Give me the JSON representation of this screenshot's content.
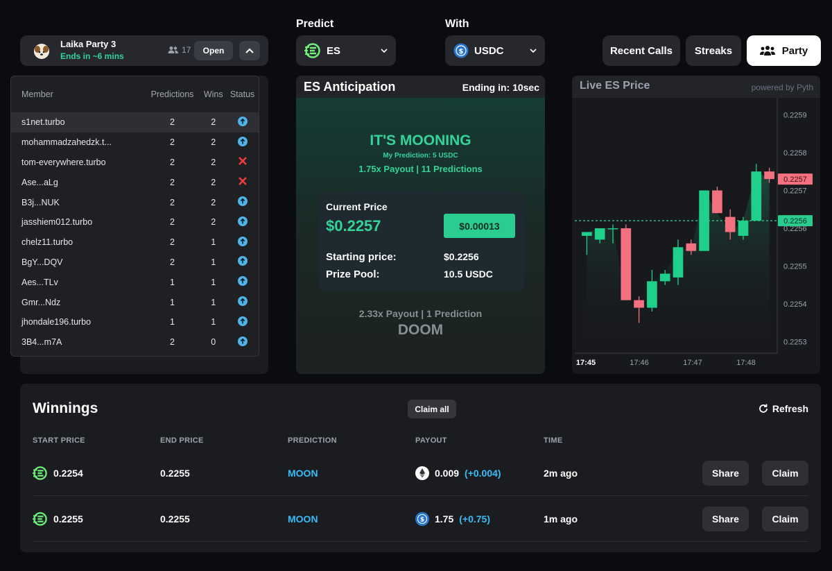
{
  "party": {
    "name": "Laika Party 3",
    "ends": "Ends in ~6 mins",
    "member_count": "17",
    "open_label": "Open"
  },
  "predict": {
    "label": "Predict",
    "value": "ES"
  },
  "with": {
    "label": "With",
    "value": "USDC"
  },
  "nav": {
    "recent_calls": "Recent Calls",
    "streaks": "Streaks",
    "party": "Party"
  },
  "members": {
    "headers": [
      "Member",
      "Predictions",
      "Wins",
      "Status"
    ],
    "rows": [
      {
        "name": "s1net.turbo",
        "predictions": "2",
        "wins": "2",
        "status": "up"
      },
      {
        "name": "mohammadzahedzk.t...",
        "predictions": "2",
        "wins": "2",
        "status": "up"
      },
      {
        "name": "tom-everywhere.turbo",
        "predictions": "2",
        "wins": "2",
        "status": "x"
      },
      {
        "name": "Ase...aLg",
        "predictions": "2",
        "wins": "2",
        "status": "x"
      },
      {
        "name": "B3j...NUK",
        "predictions": "2",
        "wins": "2",
        "status": "up"
      },
      {
        "name": "jasshiem012.turbo",
        "predictions": "2",
        "wins": "2",
        "status": "up"
      },
      {
        "name": "chelz11.turbo",
        "predictions": "2",
        "wins": "1",
        "status": "up"
      },
      {
        "name": "BgY...DQV",
        "predictions": "2",
        "wins": "1",
        "status": "up"
      },
      {
        "name": "Aes...TLv",
        "predictions": "1",
        "wins": "1",
        "status": "up"
      },
      {
        "name": "Gmr...Ndz",
        "predictions": "1",
        "wins": "1",
        "status": "up"
      },
      {
        "name": "jhondale196.turbo",
        "predictions": "1",
        "wins": "1",
        "status": "up"
      },
      {
        "name": "3B4...m7A",
        "predictions": "2",
        "wins": "0",
        "status": "up"
      }
    ]
  },
  "anticipation": {
    "title": "ES Anticipation",
    "ending": "Ending in: 10sec",
    "moon_title": "IT'S MOONING",
    "my_prediction": "My Prediction: 5 USDC",
    "moon_payout": "1.75x Payout | 11 Predictions",
    "current_price_label": "Current Price",
    "current_price": "$0.2257",
    "change": "$0.00013",
    "starting_label": "Starting price:",
    "starting_value": "$0.2256",
    "pool_label": "Prize Pool:",
    "pool_value": "10.5 USDC",
    "doom_payout": "2.33x Payout | 1 Prediction",
    "doom_title": "DOOM"
  },
  "live": {
    "title": "Live ES Price",
    "powered": "powered by Pyth"
  },
  "chart_data": {
    "type": "candlestick",
    "y_ticks": [
      "0.2259",
      "0.2258",
      "0.2257",
      "0.2256",
      "0.2255",
      "0.2254",
      "0.2253"
    ],
    "x_ticks": [
      "17:45",
      "17:46",
      "17:47",
      "17:48"
    ],
    "ylim": [
      0.22527,
      0.22593
    ],
    "current_price_label": "0.2257",
    "start_price_label": "0.2256",
    "start_price": 0.22562,
    "up_color": "#1fcf8a",
    "down_color": "#f47280",
    "candles": [
      {
        "o": 0.22558,
        "h": 0.22559,
        "l": 0.22553,
        "c": 0.22559
      },
      {
        "o": 0.22557,
        "h": 0.2256,
        "l": 0.22556,
        "c": 0.2256
      },
      {
        "o": 0.2256,
        "h": 0.22561,
        "l": 0.22556,
        "c": 0.2256
      },
      {
        "o": 0.2256,
        "h": 0.22561,
        "l": 0.22541,
        "c": 0.22541
      },
      {
        "o": 0.22541,
        "h": 0.22542,
        "l": 0.22535,
        "c": 0.22539
      },
      {
        "o": 0.22539,
        "h": 0.22549,
        "l": 0.22538,
        "c": 0.22546
      },
      {
        "o": 0.22546,
        "h": 0.22549,
        "l": 0.22545,
        "c": 0.22548
      },
      {
        "o": 0.22547,
        "h": 0.22557,
        "l": 0.22545,
        "c": 0.22555
      },
      {
        "o": 0.22556,
        "h": 0.22557,
        "l": 0.22553,
        "c": 0.22554
      },
      {
        "o": 0.22554,
        "h": 0.2257,
        "l": 0.22554,
        "c": 0.2257
      },
      {
        "o": 0.2257,
        "h": 0.22571,
        "l": 0.22564,
        "c": 0.22564
      },
      {
        "o": 0.22563,
        "h": 0.22565,
        "l": 0.22557,
        "c": 0.22559
      },
      {
        "o": 0.22558,
        "h": 0.22563,
        "l": 0.22557,
        "c": 0.22562
      },
      {
        "o": 0.22562,
        "h": 0.22577,
        "l": 0.22562,
        "c": 0.22575
      },
      {
        "o": 0.22575,
        "h": 0.22576,
        "l": 0.22572,
        "c": 0.22573
      }
    ]
  },
  "winnings": {
    "title": "Winnings",
    "claim_all": "Claim all",
    "refresh": "Refresh",
    "headers": [
      "START PRICE",
      "END PRICE",
      "PREDICTION",
      "PAYOUT",
      "TIME"
    ],
    "rows": [
      {
        "start": "0.2254",
        "end": "0.2255",
        "prediction": "MOON",
        "payout": "0.009",
        "delta": "(+0.004)",
        "token": "eth",
        "time": "2m ago",
        "share": "Share",
        "claim": "Claim"
      },
      {
        "start": "0.2255",
        "end": "0.2255",
        "prediction": "MOON",
        "payout": "1.75",
        "delta": "(+0.75)",
        "token": "usdc",
        "time": "1m ago",
        "share": "Share",
        "claim": "Claim"
      }
    ]
  }
}
